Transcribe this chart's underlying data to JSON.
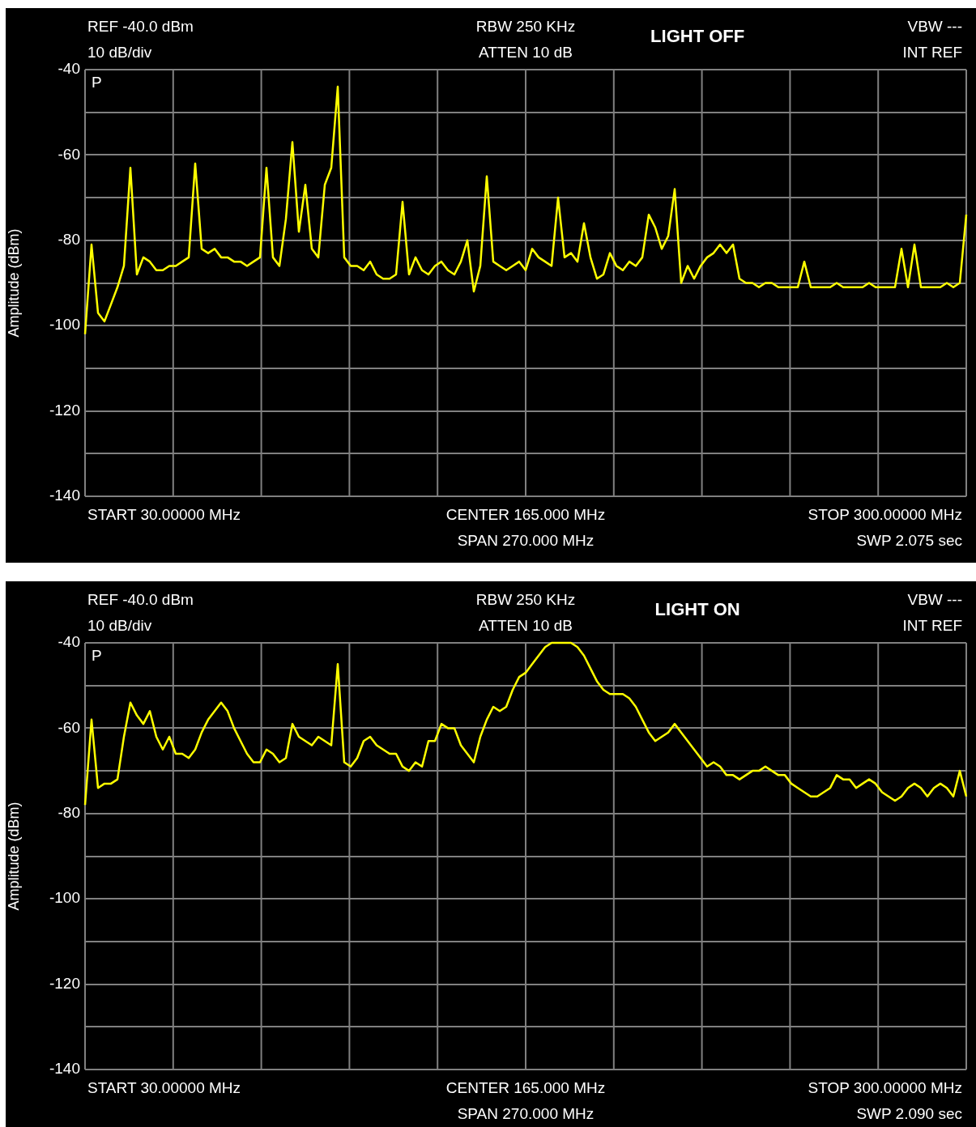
{
  "chart_data": [
    {
      "type": "line",
      "title": "LIGHT OFF",
      "ylabel": "Amplitude (dBm)",
      "annotations": [
        "REF -40.0 dBm",
        "10 dB/div",
        "RBW 250 KHz",
        "ATTEN 10 dB",
        "VBW ---",
        "INT REF",
        "P",
        "START 30.00000 MHz",
        "CENTER 165.000 MHz",
        "SPAN 270.000 MHz",
        "STOP 300.00000 MHz",
        "SWP 2.075 sec"
      ],
      "categories": [
        null,
        null,
        null,
        null,
        null,
        null,
        null,
        null,
        null,
        null,
        null,
        null,
        null,
        null,
        null,
        null,
        null,
        null,
        null,
        null,
        null,
        null,
        null,
        null,
        null,
        null,
        null,
        null,
        null,
        null,
        null,
        null,
        null,
        null,
        null,
        null,
        null,
        null,
        null,
        null,
        null,
        null,
        null,
        null,
        null,
        null,
        null,
        null,
        null,
        null,
        null,
        null,
        null,
        null,
        null,
        null,
        null,
        null,
        null,
        null,
        null,
        null,
        null,
        null,
        null,
        null,
        null,
        null,
        null,
        null,
        null,
        null,
        null,
        null,
        null,
        null,
        null,
        null,
        null,
        null,
        null,
        null,
        null,
        null,
        null,
        null,
        null,
        null,
        null,
        null,
        null,
        null,
        null,
        null,
        null,
        null,
        null,
        null,
        null,
        null,
        null,
        null,
        null,
        null,
        null,
        null,
        null,
        null,
        null,
        null,
        null,
        null,
        null,
        null,
        null,
        null,
        null,
        null,
        null,
        null,
        null,
        null,
        null,
        null,
        null,
        null,
        null,
        null,
        null,
        null,
        null,
        null,
        null,
        null,
        null,
        null,
        null
      ],
      "series": [
        {
          "color": "#ffff00",
          "values": [
            -102,
            -81,
            -97,
            -99,
            -95,
            -91,
            -86,
            -63,
            -88,
            -84,
            -85,
            -87,
            -87,
            -86,
            -86,
            -85,
            -84,
            -62,
            -82,
            -83,
            -82,
            -84,
            -84,
            -85,
            -85,
            -86,
            -85,
            -84,
            -63,
            -84,
            -86,
            -75,
            -57,
            -78,
            -67,
            -82,
            -84,
            -67,
            -63,
            -44,
            -84,
            -86,
            -86,
            -87,
            -85,
            -88,
            -89,
            -89,
            -88,
            -71,
            -88,
            -84,
            -87,
            -88,
            -86,
            -85,
            -87,
            -88,
            -85,
            -80,
            -92,
            -86,
            -65,
            -85,
            -86,
            -87,
            -86,
            -85,
            -87,
            -82,
            -84,
            -85,
            -86,
            -70,
            -84,
            -83,
            -85,
            -76,
            -84,
            -89,
            -88,
            -83,
            -86,
            -87,
            -85,
            -86,
            -84,
            -74,
            -77,
            -82,
            -79,
            -68,
            -90,
            -86,
            -89,
            -86,
            -84,
            -83,
            -81,
            -83,
            -81,
            -89,
            -90,
            -90,
            -91,
            -90,
            -90,
            -91,
            -91,
            -91,
            -91,
            -85,
            -91,
            -91,
            -91,
            -91,
            -90,
            -91,
            -91,
            -91,
            -91,
            -90,
            -91,
            -91,
            -91,
            -91,
            -82,
            -91,
            -81,
            -91,
            -91,
            -91,
            -91,
            -90,
            -91,
            -90,
            -74
          ]
        }
      ],
      "ylim": [
        -140,
        -40
      ],
      "yticks": [
        -140,
        {
          "value": -130,
          "label": null
        },
        -120,
        {
          "value": -110,
          "label": null
        },
        -100,
        {
          "value": -90,
          "label": null
        },
        -80,
        {
          "value": -70,
          "label": null
        },
        -60,
        {
          "value": -50,
          "label": null
        },
        -40
      ],
      "grid": true,
      "tick_labels": "y",
      "marker": "none",
      "line_style": "solid"
    },
    {
      "type": "line",
      "title": "LIGHT ON",
      "ylabel": "Amplitude (dBm)",
      "annotations": [
        "REF -40.0 dBm",
        "10 dB/div",
        "RBW 250 KHz",
        "ATTEN 10 dB",
        "VBW ---",
        "INT REF",
        "P",
        "START 30.00000 MHz",
        "CENTER 165.000 MHz",
        "SPAN 270.000 MHz",
        "STOP 300.00000 MHz",
        "SWP 2.090 sec"
      ],
      "categories": [
        null,
        null,
        null,
        null,
        null,
        null,
        null,
        null,
        null,
        null,
        null,
        null,
        null,
        null,
        null,
        null,
        null,
        null,
        null,
        null,
        null,
        null,
        null,
        null,
        null,
        null,
        null,
        null,
        null,
        null,
        null,
        null,
        null,
        null,
        null,
        null,
        null,
        null,
        null,
        null,
        null,
        null,
        null,
        null,
        null,
        null,
        null,
        null,
        null,
        null,
        null,
        null,
        null,
        null,
        null,
        null,
        null,
        null,
        null,
        null,
        null,
        null,
        null,
        null,
        null,
        null,
        null,
        null,
        null,
        null,
        null,
        null,
        null,
        null,
        null,
        null,
        null,
        null,
        null,
        null,
        null,
        null,
        null,
        null,
        null,
        null,
        null,
        null,
        null,
        null,
        null,
        null,
        null,
        null,
        null,
        null,
        null,
        null,
        null,
        null,
        null,
        null,
        null,
        null,
        null,
        null,
        null,
        null,
        null,
        null,
        null,
        null,
        null,
        null,
        null,
        null,
        null,
        null,
        null,
        null,
        null,
        null,
        null,
        null,
        null,
        null,
        null,
        null,
        null,
        null,
        null,
        null,
        null,
        null,
        null,
        null,
        null
      ],
      "series": [
        {
          "color": "#ffff00",
          "values": [
            -78,
            -58,
            -74,
            -73,
            -73,
            -72,
            -62,
            -54,
            -57,
            -59,
            -56,
            -62,
            -65,
            -62,
            -66,
            -66,
            -67,
            -65,
            -61,
            -58,
            -56,
            -54,
            -56,
            -60,
            -63,
            -66,
            -68,
            -68,
            -65,
            -66,
            -68,
            -67,
            -59,
            -62,
            -63,
            -64,
            -62,
            -63,
            -64,
            -45,
            -68,
            -69,
            -67,
            -63,
            -62,
            -64,
            -65,
            -66,
            -66,
            -69,
            -70,
            -68,
            -69,
            -63,
            -63,
            -59,
            -60,
            -60,
            -64,
            -66,
            -68,
            -62,
            -58,
            -55,
            -56,
            -55,
            -51,
            -48,
            -47,
            -45,
            -43,
            -41,
            -40,
            -40,
            -40,
            -40,
            -41,
            -43,
            -46,
            -49,
            -51,
            -52,
            -52,
            -52,
            -53,
            -55,
            -58,
            -61,
            -63,
            -62,
            -61,
            -59,
            -61,
            -63,
            -65,
            -67,
            -69,
            -68,
            -69,
            -71,
            -71,
            -72,
            -71,
            -70,
            -70,
            -69,
            -70,
            -71,
            -71,
            -73,
            -74,
            -75,
            -76,
            -76,
            -75,
            -74,
            -71,
            -72,
            -72,
            -74,
            -73,
            -72,
            -73,
            -75,
            -76,
            -77,
            -76,
            -74,
            -73,
            -74,
            -76,
            -74,
            -73,
            -74,
            -76,
            -70,
            -76
          ]
        }
      ],
      "ylim": [
        -140,
        -40
      ],
      "yticks": [
        -140,
        {
          "value": -130,
          "label": null
        },
        -120,
        {
          "value": -110,
          "label": null
        },
        -100,
        {
          "value": -90,
          "label": null
        },
        -80,
        {
          "value": -70,
          "label": null
        },
        -60,
        {
          "value": -50,
          "label": null
        },
        -40
      ],
      "grid": true,
      "tick_labels": "y",
      "marker": "none",
      "line_style": "solid"
    }
  ]
}
